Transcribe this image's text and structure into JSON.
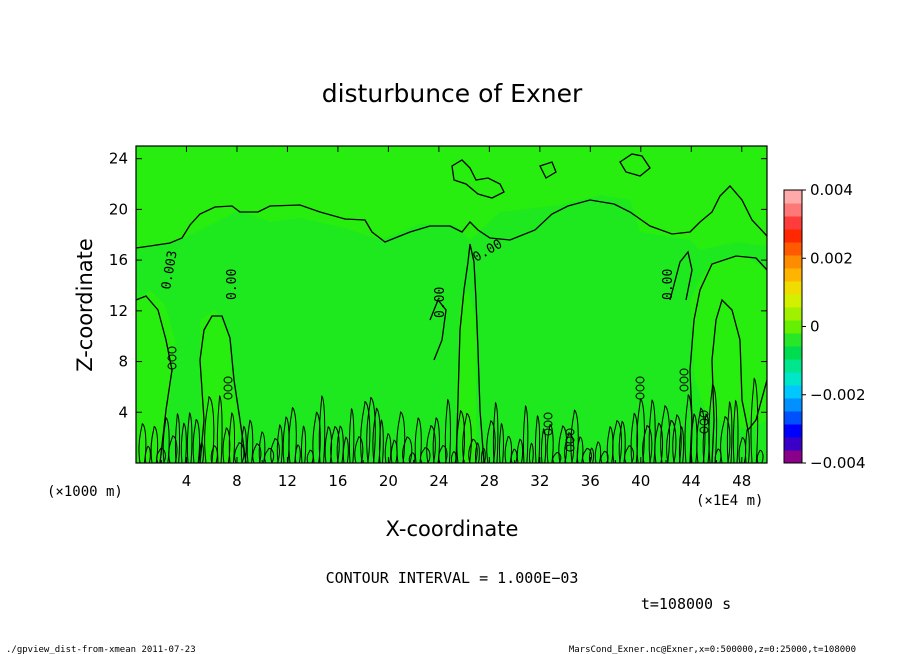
{
  "chart_data": {
    "type": "heatmap",
    "title": "disturbunce of Exner",
    "xlabel": "X-coordinate",
    "ylabel": "Z-coordinate",
    "x_unit": "(×1000 m)",
    "x_scale_note": "(×1E4 m)",
    "xlim": [
      0,
      50
    ],
    "ylim": [
      0,
      25
    ],
    "x_ticks": [
      "4",
      "8",
      "12",
      "16",
      "20",
      "24",
      "28",
      "32",
      "36",
      "40",
      "44",
      "48"
    ],
    "y_ticks": [
      "4",
      "8",
      "12",
      "16",
      "20",
      "24"
    ],
    "colorbar": {
      "range": [
        -0.004,
        0.004
      ],
      "tick_labels": [
        "0.004",
        "0.002",
        "0",
        "−0.002",
        "−0.004"
      ],
      "colors": [
        "#8b008b",
        "#3a00c8",
        "#0000ff",
        "#0050ff",
        "#0090ff",
        "#00c8ff",
        "#00e6c8",
        "#00e68c",
        "#00dc50",
        "#28e628",
        "#64f000",
        "#a0f000",
        "#d2f000",
        "#f0dc00",
        "#ffb400",
        "#ff8c00",
        "#ff5a00",
        "#ff2800",
        "#ff3c3c",
        "#ff7878",
        "#ffaaaa"
      ]
    },
    "contour_labels": [
      "0.003",
      "0.00",
      "0.00",
      "0.00",
      "0.00"
    ],
    "contour_interval_text": "CONTOUR INTERVAL = 1.000E−03",
    "time_text": "t=108000 s"
  },
  "footer": {
    "left": "./gpview_dist-from-xmean  2011-07-23",
    "right": "MarsCond_Exner.nc@Exner,x=0:500000,z=0:25000,t=108000"
  },
  "colors": {
    "field_light": "#28ee10",
    "field_dark": "#1ee81e",
    "contour": "#000000"
  }
}
